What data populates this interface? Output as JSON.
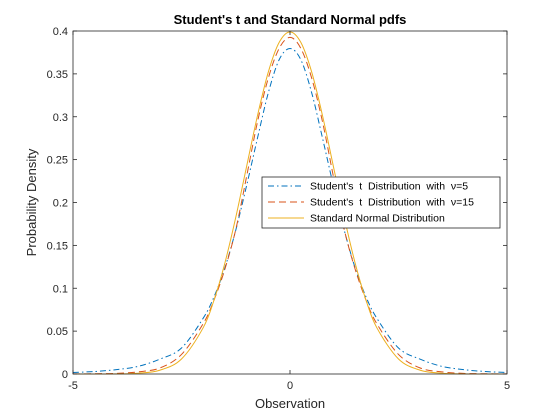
{
  "chart_data": {
    "type": "line",
    "title": "Student's t and Standard Normal pdfs",
    "xlabel": "Observation",
    "ylabel": "Probability Density",
    "xlim": [
      -5,
      5
    ],
    "ylim": [
      0,
      0.4
    ],
    "xticks": [
      -5,
      0,
      5
    ],
    "xtick_labels": [
      "-5",
      "0",
      "5"
    ],
    "yticks": [
      0,
      0.05,
      0.1,
      0.15,
      0.2,
      0.25,
      0.3,
      0.35,
      0.4
    ],
    "ytick_labels": [
      "0",
      "0.05",
      "0.1",
      "0.15",
      "0.2",
      "0.25",
      "0.3",
      "0.35",
      "0.4"
    ],
    "grid": false,
    "legend_position": "right",
    "x": [
      -5,
      -4.5,
      -4,
      -3.5,
      -3,
      -2.5,
      -2,
      -1.75,
      -1.5,
      -1.25,
      -1,
      -0.75,
      -0.5,
      -0.25,
      0,
      0.25,
      0.5,
      0.75,
      1,
      1.25,
      1.5,
      1.75,
      2,
      2.5,
      3,
      3.5,
      4,
      4.5,
      5
    ],
    "series": [
      {
        "name": "Student's  t  Distribution  with  ν=5",
        "color": "#0072BD",
        "dash": "dashdot",
        "values": [
          0.0018,
          0.0029,
          0.0051,
          0.0089,
          0.0173,
          0.0303,
          0.0651,
          0.0901,
          0.1239,
          0.1677,
          0.2197,
          0.2749,
          0.3279,
          0.3665,
          0.3796,
          0.3665,
          0.3279,
          0.2749,
          0.2197,
          0.1677,
          0.1239,
          0.0901,
          0.0651,
          0.0303,
          0.0173,
          0.0089,
          0.0051,
          0.0029,
          0.0018
        ]
      },
      {
        "name": "Student's  t  Distribution  with  ν=15",
        "color": "#D95319",
        "dash": "dashed",
        "values": [
          0.0001,
          0.0003,
          0.0007,
          0.0025,
          0.007,
          0.0228,
          0.0587,
          0.0863,
          0.1224,
          0.1684,
          0.2303,
          0.2939,
          0.345,
          0.3797,
          0.3925,
          0.3797,
          0.345,
          0.2939,
          0.2303,
          0.1684,
          0.1224,
          0.0863,
          0.0587,
          0.0228,
          0.007,
          0.0025,
          0.0007,
          0.0003,
          0.0001
        ]
      },
      {
        "name": "Standard Normal Distribution",
        "color": "#EDB120",
        "dash": "solid",
        "values": [
          0.0,
          0.0,
          0.0001,
          0.0009,
          0.0044,
          0.0175,
          0.054,
          0.0863,
          0.1295,
          0.1826,
          0.242,
          0.3011,
          0.3521,
          0.3867,
          0.3989,
          0.3867,
          0.3521,
          0.3011,
          0.242,
          0.1826,
          0.1295,
          0.0863,
          0.054,
          0.0175,
          0.0044,
          0.0009,
          0.0001,
          0.0,
          0.0
        ]
      }
    ]
  }
}
